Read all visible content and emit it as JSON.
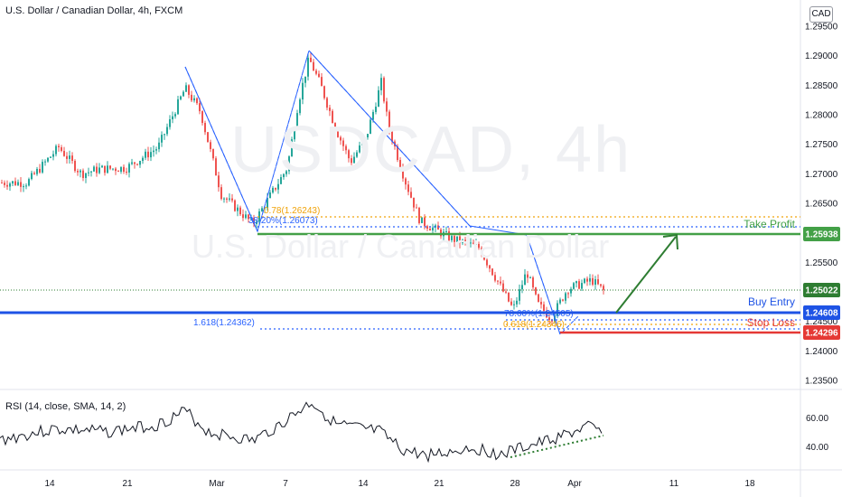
{
  "header": {
    "title": "U.S. Dollar / Canadian Dollar, 4h, FXCM",
    "currency_badge": "CAD"
  },
  "watermark": {
    "symbol": "USDCAD, 4h",
    "name": "U.S. Dollar / Canadian Dollar"
  },
  "chart_data": {
    "type": "candlestick",
    "symbol": "USDCAD",
    "timeframe": "4h",
    "y_ticks": [
      "1.29500",
      "1.29000",
      "1.28500",
      "1.28000",
      "1.27500",
      "1.27000",
      "1.26500",
      "1.26000",
      "1.25500",
      "1.25000",
      "1.24500",
      "1.24000",
      "1.23500"
    ],
    "x_ticks": [
      "14",
      "21",
      "Mar",
      "7",
      "14",
      "21",
      "28",
      "Apr",
      "11",
      "18"
    ],
    "ylim": [
      1.2325,
      1.2965
    ],
    "price_tags": [
      {
        "name": "take_profit",
        "value": "1.25938",
        "label": "Take Profit",
        "color": "#43a047"
      },
      {
        "name": "current",
        "value": "1.25022",
        "label": "",
        "color": "#2e7d32"
      },
      {
        "name": "buy_entry",
        "value": "1.24608",
        "label": "Buy Entry",
        "color": "#1e53e5"
      },
      {
        "name": "stop_loss",
        "value": "1.24296",
        "label": "Stop Loss",
        "color": "#e53935"
      }
    ],
    "fib_labels": [
      {
        "text": "0.78(1.26243)",
        "color": "#f0a30a"
      },
      {
        "text": "38.20%(1.26073)",
        "color": "#2962ff"
      },
      {
        "text": "78.60%(1.24505)",
        "color": "#2962ff"
      },
      {
        "text": "0.618(1.24346)",
        "color": "#f0a30a"
      },
      {
        "text": "1.618(1.24362)",
        "color": "#2962ff"
      }
    ],
    "rsi": {
      "label": "RSI (14, close, SMA, 14, 2)",
      "y_ticks": [
        "60.00",
        "40.00"
      ]
    },
    "colors": {
      "up": "#26a69a",
      "down": "#ef5350",
      "grid": "#f0f3fa",
      "rsi_line": "#131722"
    }
  }
}
